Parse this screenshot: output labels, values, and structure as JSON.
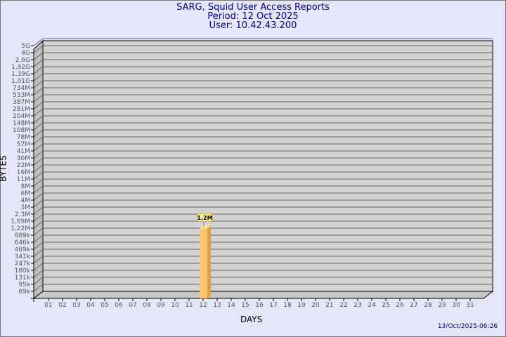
{
  "header": {
    "title": "SARG, Squid User Access Reports",
    "period": "Period: 12 Oct 2025",
    "user": "User: 10.42.43.200"
  },
  "footer": {
    "timestamp": "13/Oct/2025-06:26"
  },
  "colors": {
    "background": "#e6e6fa",
    "plot": "#d3d3d3",
    "bar": "#fcc66c",
    "bar_side": "#dca04c",
    "title": "#000080"
  },
  "chart_data": {
    "type": "bar",
    "xlabel": "DAYS",
    "ylabel": "BYTES",
    "y_scale": "log",
    "grid": true,
    "y_ticks": [
      "5G",
      "4G",
      "2,6G",
      "1,92G",
      "1,39G",
      "1,01G",
      "734M",
      "533M",
      "387M",
      "281M",
      "204M",
      "148M",
      "108M",
      "78M",
      "57M",
      "41M",
      "30M",
      "22M",
      "16M",
      "11M",
      "8M",
      "6M",
      "4M",
      "3M",
      "2,3M",
      "1,69M",
      "1,22M",
      "889k",
      "646k",
      "469k",
      "341k",
      "247k",
      "180k",
      "131k",
      "95k",
      "69k"
    ],
    "categories": [
      "01",
      "02",
      "03",
      "04",
      "05",
      "06",
      "07",
      "08",
      "09",
      "10",
      "11",
      "12",
      "13",
      "14",
      "15",
      "16",
      "17",
      "18",
      "19",
      "20",
      "21",
      "22",
      "23",
      "24",
      "25",
      "26",
      "27",
      "28",
      "29",
      "30",
      "31"
    ],
    "bars": [
      {
        "day": "12",
        "value": 1200000,
        "label": "1,2M"
      }
    ]
  }
}
